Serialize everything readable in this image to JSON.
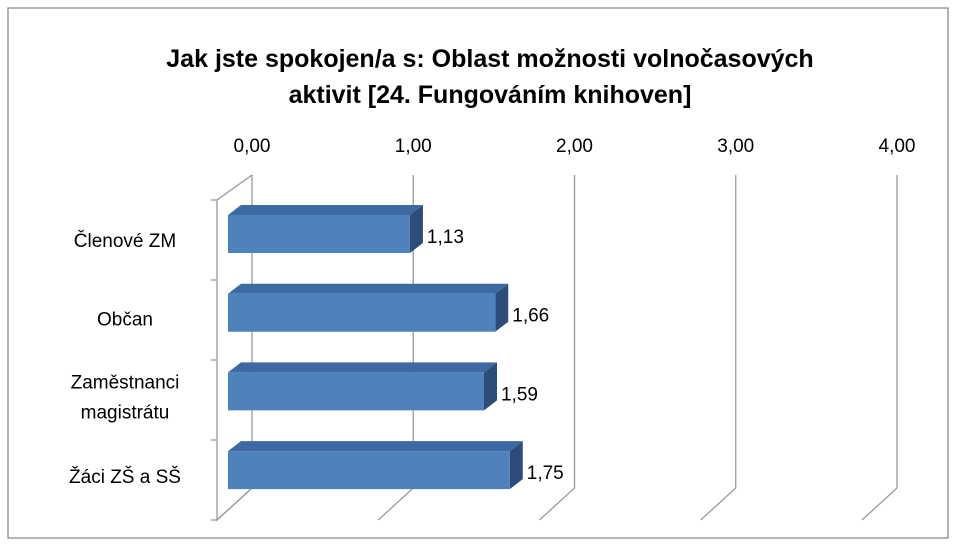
{
  "chart_data": {
    "type": "bar",
    "orientation": "horizontal",
    "three_d": true,
    "title": "Jak jste spokojen/a s: Oblast možnosti volnočasových aktivit [24. Fungováním knihoven]",
    "categories": [
      "Členové ZM",
      "Občan",
      "Zaměstnanci magistrátu",
      "Žáci ZŠ a SŠ"
    ],
    "values": [
      1.13,
      1.66,
      1.59,
      1.75
    ],
    "value_labels": [
      "1,13",
      "1,66",
      "1,59",
      "1,75"
    ],
    "color": "#4f81bd",
    "xlim": [
      0,
      4
    ],
    "xticks": [
      {
        "value": 0,
        "label": "0,00"
      },
      {
        "value": 1,
        "label": "1,00"
      },
      {
        "value": 2,
        "label": "2,00"
      },
      {
        "value": 3,
        "label": "3,00"
      },
      {
        "value": 4,
        "label": "4,00"
      }
    ],
    "grid": true
  }
}
